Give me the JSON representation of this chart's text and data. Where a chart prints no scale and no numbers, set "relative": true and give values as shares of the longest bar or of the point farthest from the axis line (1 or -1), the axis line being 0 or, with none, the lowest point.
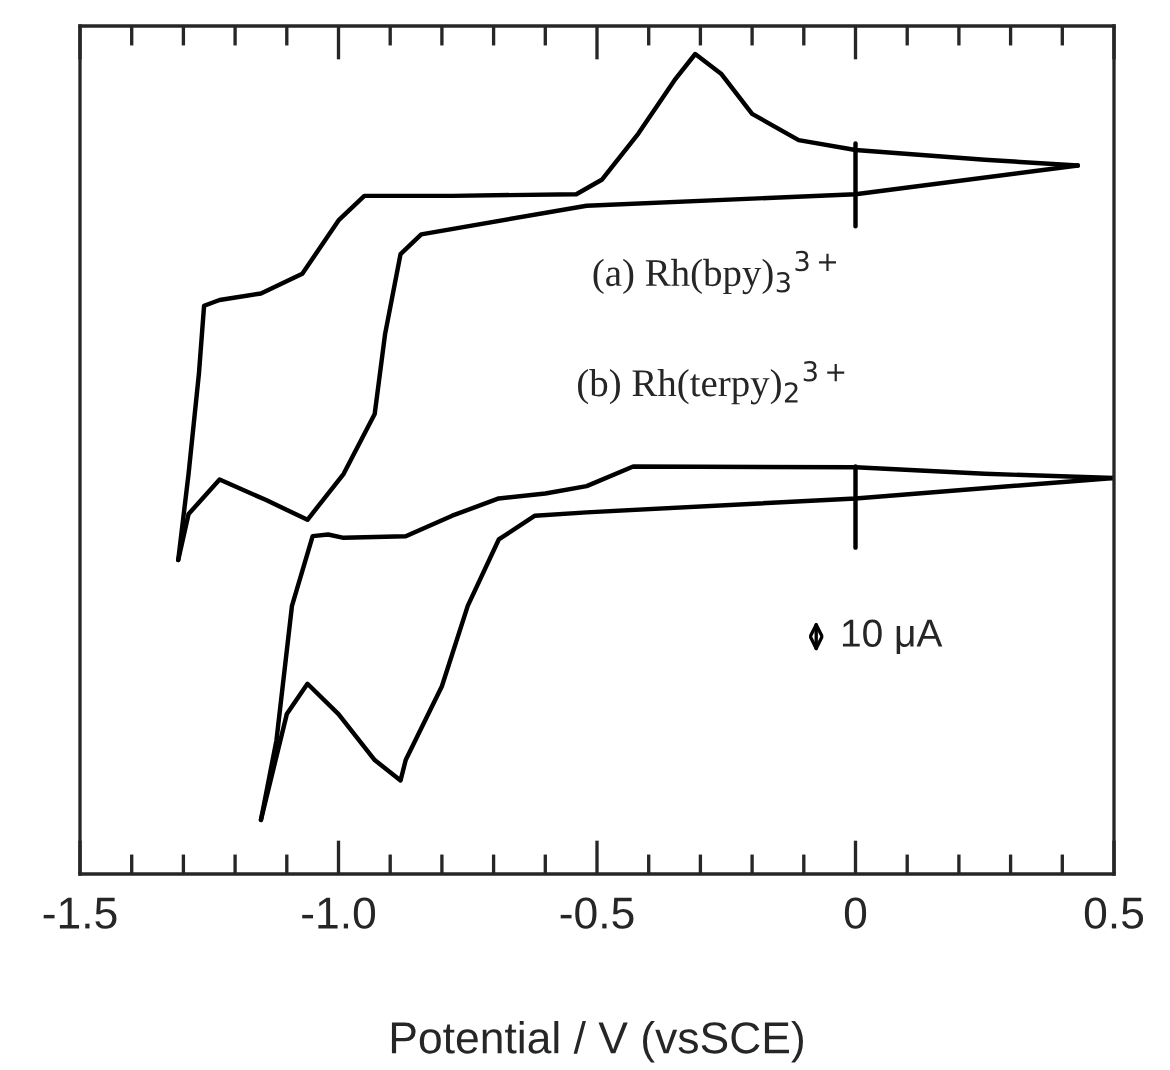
{
  "chart_data": {
    "type": "line",
    "relative": true,
    "xlabel": "Potential / V (vsSCE)",
    "xlim": [
      -1.5,
      0.5
    ],
    "xticks": [
      -1.5,
      {
        "value": -1.4,
        "label": null
      },
      {
        "value": -1.3,
        "label": null
      },
      {
        "value": -1.2,
        "label": null
      },
      {
        "value": -1.1,
        "label": null
      },
      {
        "value": -1.0,
        "label": "-1.0"
      },
      {
        "value": -0.9,
        "label": null
      },
      {
        "value": -0.8,
        "label": null
      },
      {
        "value": -0.7,
        "label": null
      },
      {
        "value": -0.6,
        "label": null
      },
      -0.5,
      {
        "value": -0.4,
        "label": null
      },
      {
        "value": -0.3,
        "label": null
      },
      {
        "value": -0.2,
        "label": null
      },
      {
        "value": -0.1,
        "label": null
      },
      0,
      {
        "value": 0.1,
        "label": null
      },
      {
        "value": 0.2,
        "label": null
      },
      {
        "value": 0.3,
        "label": null
      },
      {
        "value": 0.4,
        "label": null
      },
      0.5
    ],
    "tick_labels": "x",
    "grid": false,
    "legend": false,
    "marker": "none",
    "line_style": "solid",
    "series": [
      {
        "color": "#000000",
        "x": [
          0.43,
          0.0,
          -0.52,
          -0.84,
          -0.88,
          -0.91,
          -0.93,
          -0.99,
          -1.06,
          -1.14,
          -1.23,
          -1.29,
          -1.31
        ],
        "values": [
          0.864,
          0.829,
          0.815,
          0.78,
          0.756,
          0.658,
          0.561,
          0.488,
          0.432,
          0.456,
          0.481,
          0.439,
          0.383
        ]
      },
      {
        "color": "#000000",
        "x": [
          -1.31,
          -1.29,
          -1.27,
          -1.26,
          -1.23,
          -1.15,
          -1.07,
          -1.0,
          -0.95,
          -0.78,
          -0.54,
          -0.49,
          -0.42,
          -0.35,
          -0.31,
          -0.26,
          -0.2,
          -0.11,
          0.0,
          0.25,
          0.43
        ],
        "values": [
          0.383,
          0.488,
          0.61,
          0.693,
          0.7,
          0.708,
          0.732,
          0.797,
          0.827,
          0.827,
          0.829,
          0.847,
          0.903,
          0.968,
          1.0,
          0.976,
          0.927,
          0.895,
          0.883,
          0.871,
          0.864
        ]
      },
      {
        "color": "#000000",
        "x": [
          0.5,
          0.0,
          -0.52,
          -0.62,
          -0.69,
          -0.75,
          -0.8,
          -0.87,
          -0.88,
          -0.93,
          -1.0,
          -1.06,
          -1.1,
          -1.15
        ],
        "values": [
          0.483,
          0.458,
          0.441,
          0.437,
          0.408,
          0.327,
          0.229,
          0.139,
          0.114,
          0.139,
          0.195,
          0.232,
          0.195,
          0.066
        ]
      },
      {
        "color": "#000000",
        "x": [
          -1.15,
          -1.12,
          -1.09,
          -1.05,
          -1.02,
          -0.99,
          -0.87,
          -0.78,
          -0.69,
          -0.6,
          -0.52,
          -0.43,
          0.0,
          0.25,
          0.5
        ],
        "values": [
          0.066,
          0.163,
          0.327,
          0.412,
          0.414,
          0.41,
          0.412,
          0.437,
          0.458,
          0.464,
          0.473,
          0.497,
          0.496,
          0.488,
          0.483
        ]
      },
      {
        "color": "#000000",
        "x": [
          0,
          0
        ],
        "values": [
          0.891,
          0.79
        ]
      },
      {
        "color": "#000000",
        "x": [
          0,
          0
        ],
        "values": [
          0.497,
          0.398
        ]
      }
    ],
    "annotations": [
      "(a) Rh(bpy)$_{3}$$^{3+}$",
      "(b) Rh(terpy)$_{2}$$^{3+}$",
      "10 μA"
    ]
  }
}
